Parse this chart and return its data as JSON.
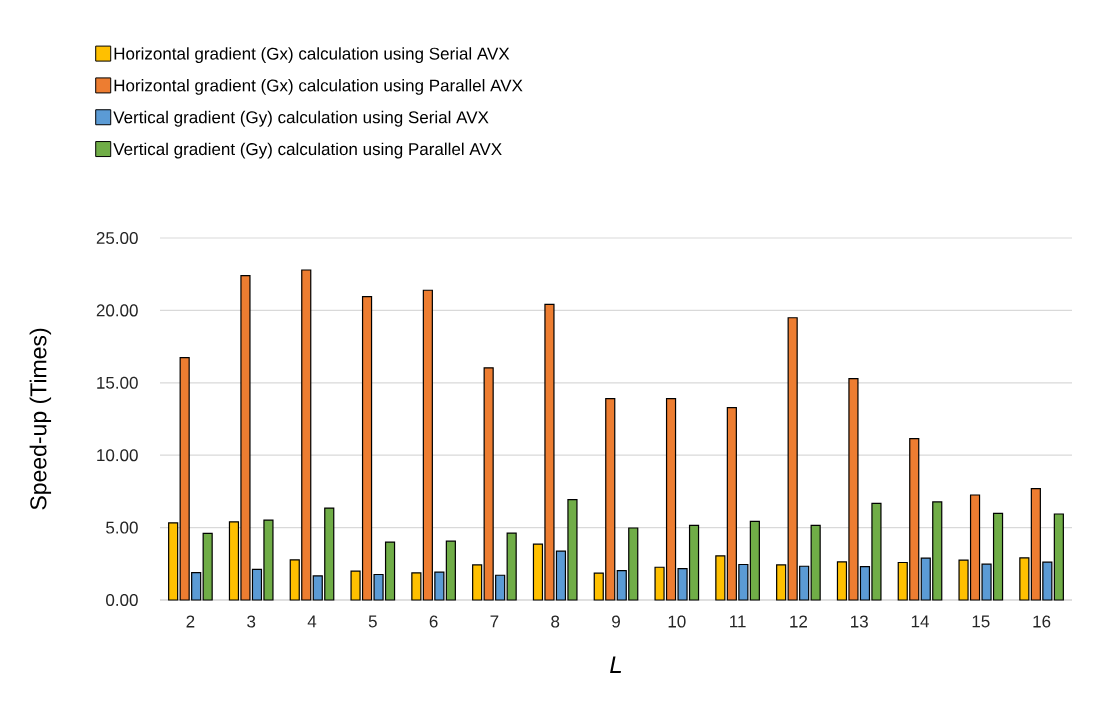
{
  "chart_data": {
    "type": "bar",
    "xlabel": "L",
    "ylabel": "Speed-up (Times)",
    "categories": [
      "2",
      "3",
      "4",
      "5",
      "6",
      "7",
      "8",
      "9",
      "10",
      "11",
      "12",
      "13",
      "14",
      "15",
      "16"
    ],
    "series": [
      {
        "name": "Horizontal gradient (Gx) calculation using Serial AVX",
        "color": "#ffc000",
        "values": [
          5.33,
          5.4,
          2.77,
          1.99,
          1.87,
          2.42,
          3.86,
          1.85,
          2.26,
          3.05,
          2.42,
          2.63,
          2.59,
          2.75,
          2.91
        ]
      },
      {
        "name": "Horizontal gradient (Gx) calculation using Parallel AVX",
        "color": "#ed7d31",
        "values": [
          16.74,
          22.4,
          22.79,
          20.95,
          21.39,
          16.03,
          20.42,
          13.9,
          13.9,
          13.28,
          19.49,
          15.29,
          11.15,
          7.25,
          7.69
        ]
      },
      {
        "name": "Vertical gradient (Gy) calculation using Serial AVX",
        "color": "#5b9bd5",
        "values": [
          1.89,
          2.12,
          1.66,
          1.76,
          1.92,
          1.71,
          3.37,
          2.03,
          2.17,
          2.45,
          2.33,
          2.31,
          2.89,
          2.47,
          2.61
        ]
      },
      {
        "name": "Vertical gradient (Gy) calculation using Parallel AVX",
        "color": "#70ad47",
        "values": [
          4.6,
          5.52,
          6.35,
          4.0,
          4.06,
          4.62,
          6.93,
          4.97,
          5.15,
          5.43,
          5.15,
          6.67,
          6.77,
          5.98,
          5.94
        ]
      }
    ],
    "ylim": [
      0,
      25
    ],
    "yticks": [
      {
        "value": 0,
        "label": "0.00"
      },
      {
        "value": 5,
        "label": "5.00"
      },
      {
        "value": 10,
        "label": "10.00"
      },
      {
        "value": 15,
        "label": "15.00"
      },
      {
        "value": 20,
        "label": "20.00"
      },
      {
        "value": 25,
        "label": "25.00"
      }
    ],
    "grid": "y",
    "legend": "top left"
  }
}
